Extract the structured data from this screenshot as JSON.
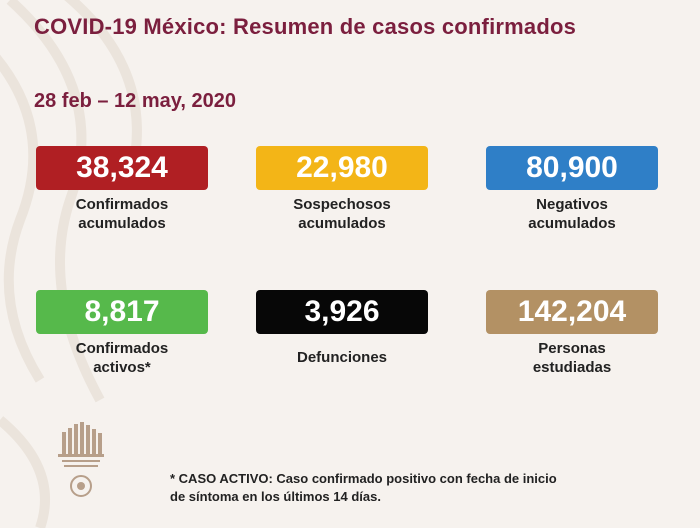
{
  "header": {
    "title": "COVID-19 México: Resumen de casos confirmados",
    "date_range": "28 feb – 12 may, 2020"
  },
  "stats": [
    {
      "value": "38,324",
      "label_line1": "Confirmados",
      "label_line2": "acumulados",
      "color": "#b01f23"
    },
    {
      "value": "22,980",
      "label_line1": "Sospechosos",
      "label_line2": "acumulados",
      "color": "#f3b517"
    },
    {
      "value": "80,900",
      "label_line1": "Negativos",
      "label_line2": "acumulados",
      "color": "#2f7fc7"
    },
    {
      "value": "8,817",
      "label_line1": "Confirmados",
      "label_line2": "activos*",
      "color": "#56b94b"
    },
    {
      "value": "3,926",
      "label_line1": "Defunciones",
      "label_line2": "",
      "color": "#070707"
    },
    {
      "value": "142,204",
      "label_line1": "Personas",
      "label_line2": "estudiadas",
      "color": "#b39164"
    }
  ],
  "footnote": {
    "line1": "* CASO ACTIVO: Caso confirmado positivo con fecha de inicio",
    "line2": "de síntoma en los últimos 14 días."
  }
}
